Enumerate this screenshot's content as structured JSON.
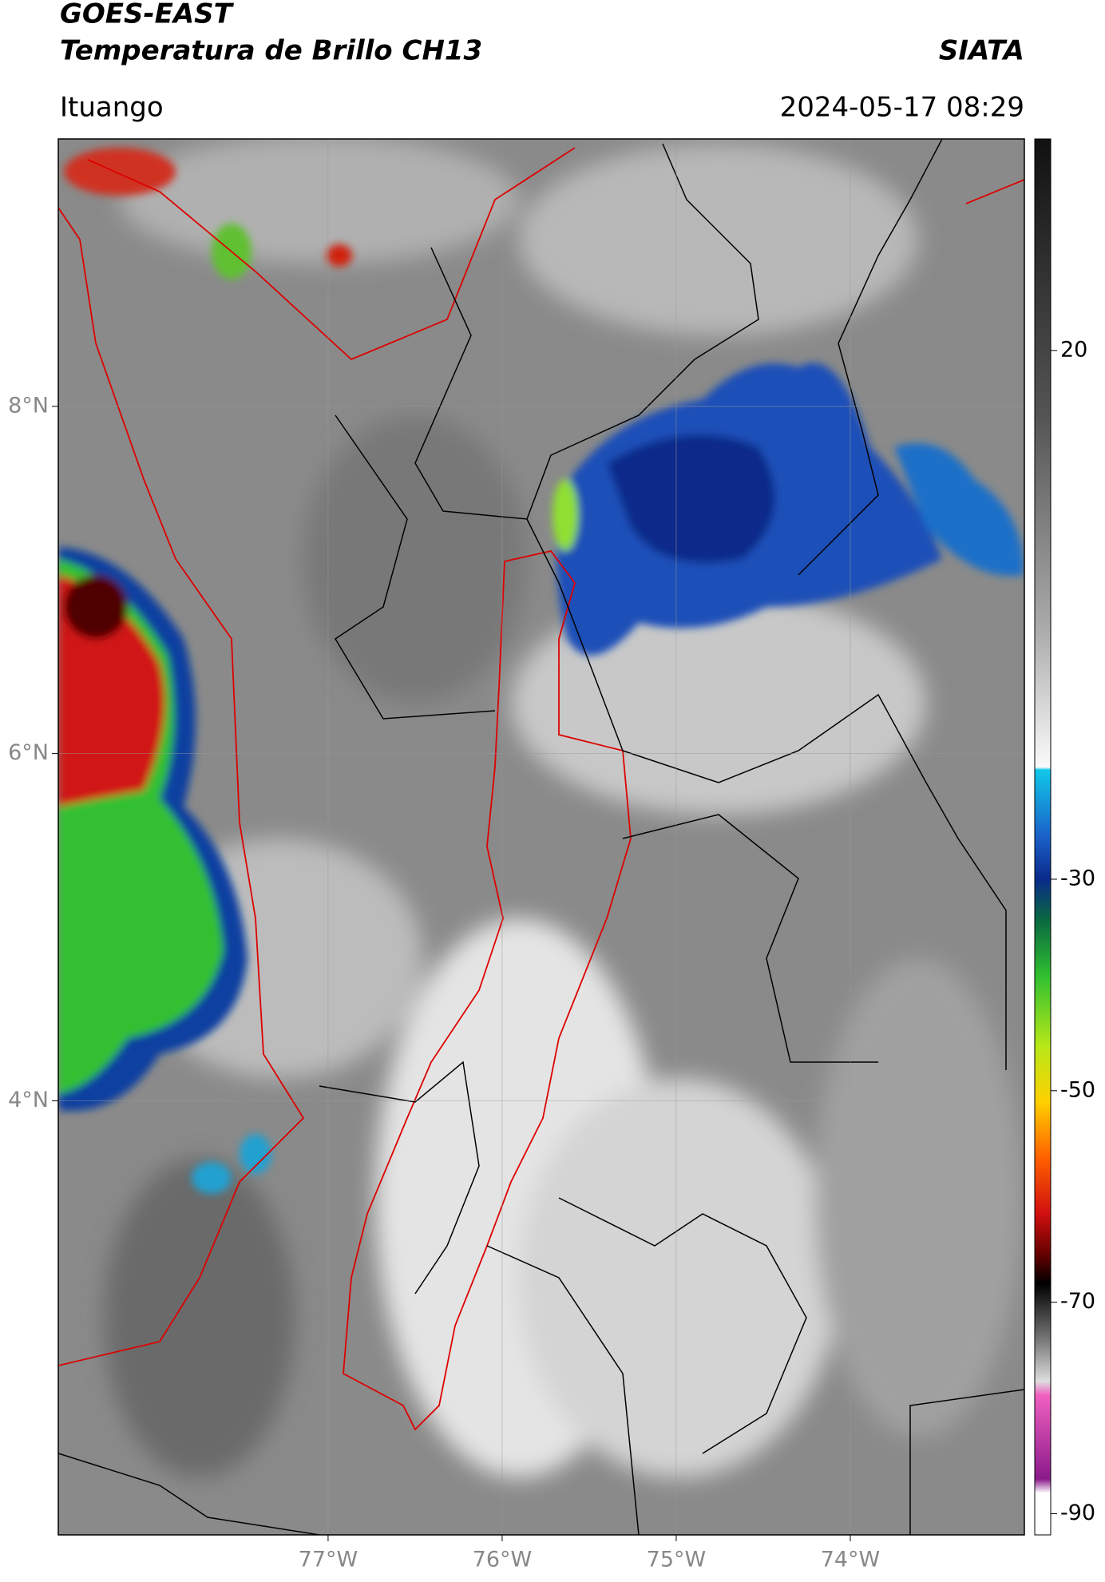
{
  "header": {
    "title": "GOES-EAST",
    "subtitle": "Temperatura de Brillo CH13",
    "source": "SIATA",
    "location": "Ituango",
    "datetime": "2024-05-17 08:29"
  },
  "map": {
    "xlim": [
      -78.55,
      -73.0
    ],
    "ylim": [
      1.5,
      9.54
    ],
    "xticks": [
      {
        "value": -77,
        "label": "77°W"
      },
      {
        "value": -76,
        "label": "76°W"
      },
      {
        "value": -75,
        "label": "75°W"
      },
      {
        "value": -74,
        "label": "74°W"
      }
    ],
    "yticks": [
      {
        "value": 8,
        "label": "8°N"
      },
      {
        "value": 6,
        "label": "6°N"
      },
      {
        "value": 4,
        "label": "4°N"
      }
    ],
    "grid": true
  },
  "colorbar": {
    "lim": [
      -92,
      40
    ],
    "ticks": [
      20,
      -30,
      -50,
      -70,
      -90
    ]
  }
}
